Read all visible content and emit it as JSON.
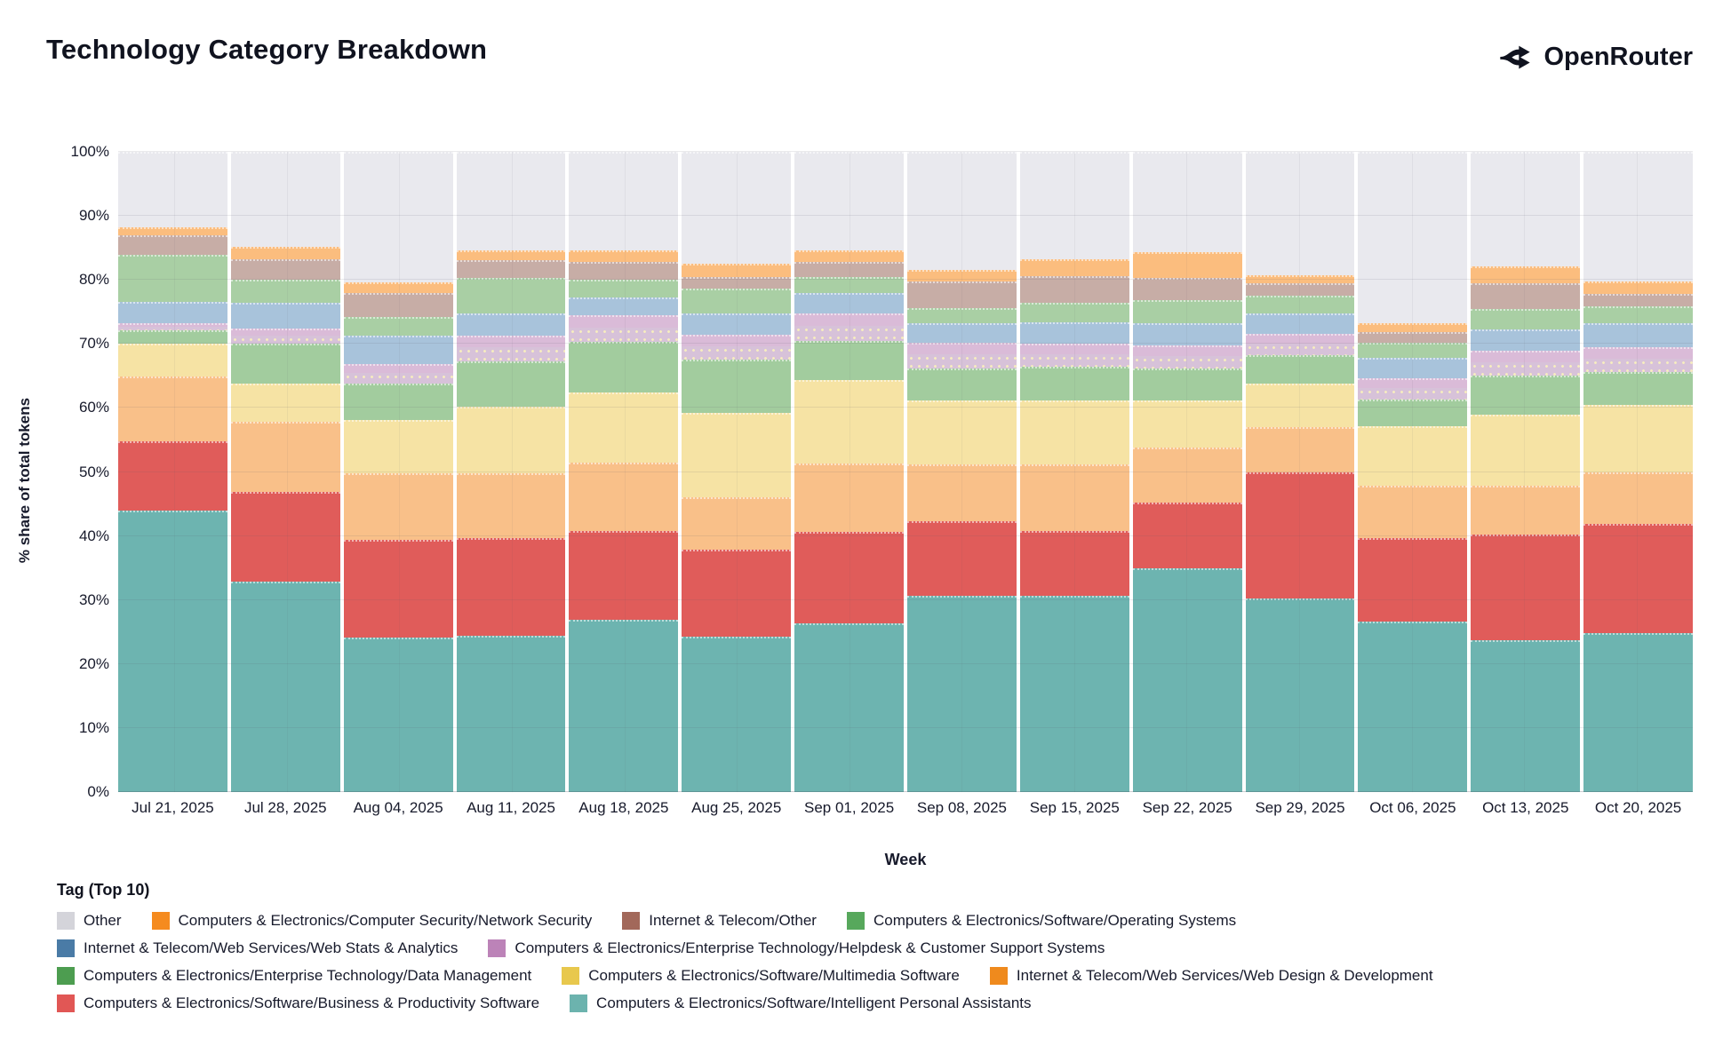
{
  "header": {
    "title": "Technology Category Breakdown",
    "brand": "OpenRouter"
  },
  "axes": {
    "y_title": "% share of total tokens",
    "x_title": "Week",
    "y_ticks": [
      "0%",
      "10%",
      "20%",
      "30%",
      "40%",
      "50%",
      "60%",
      "70%",
      "80%",
      "90%",
      "100%"
    ]
  },
  "legend": {
    "title": "Tag (Top 10)",
    "rows": [
      [
        "other",
        "ns",
        "ito",
        "os"
      ],
      [
        "wsa",
        "hcss"
      ],
      [
        "dm",
        "mms",
        "wdd"
      ],
      [
        "bps",
        "ipa"
      ]
    ]
  },
  "chart_data": {
    "type": "bar",
    "stacked": true,
    "title": "Technology Category Breakdown",
    "xlabel": "Week",
    "ylabel": "% share of total tokens",
    "ylim": [
      0,
      100
    ],
    "grid": true,
    "legend_position": "bottom",
    "categories": [
      "Jul 21, 2025",
      "Jul 28, 2025",
      "Aug 04, 2025",
      "Aug 11, 2025",
      "Aug 18, 2025",
      "Aug 25, 2025",
      "Sep 01, 2025",
      "Sep 08, 2025",
      "Sep 15, 2025",
      "Sep 22, 2025",
      "Sep 29, 2025",
      "Oct 06, 2025",
      "Oct 13, 2025",
      "Oct 20, 2025"
    ],
    "series": [
      {
        "key": "ipa",
        "name": "Computers & Electronics/Software/Intelligent Personal Assistants",
        "legend_color": "#6cb3ae",
        "bar_color": "#6db4b0",
        "pattern": false,
        "values": [
          44.0,
          32.9,
          24.1,
          24.4,
          26.9,
          24.3,
          26.4,
          30.6,
          30.6,
          34.9,
          30.2,
          26.6,
          23.7,
          24.8
        ]
      },
      {
        "key": "bps",
        "name": "Computers & Electronics/Software/Business & Productivity Software",
        "legend_color": "#e15755",
        "bar_color": "#e05c5a",
        "pattern": false,
        "values": [
          10.8,
          14.0,
          15.3,
          15.3,
          13.9,
          13.6,
          14.2,
          11.7,
          10.2,
          10.3,
          19.7,
          13.1,
          16.5,
          17.1
        ]
      },
      {
        "key": "wdd",
        "name": "Internet & Telecom/Web Services/Web Design & Development",
        "legend_color": "#ef8a1d",
        "bar_color": "#f9c089",
        "pattern": false,
        "values": [
          10.1,
          10.9,
          10.4,
          10.1,
          10.7,
          8.1,
          10.7,
          8.9,
          10.4,
          8.6,
          7.1,
          8.2,
          7.6,
          8.0
        ]
      },
      {
        "key": "mms",
        "name": "Computers & Electronics/Software/Multimedia Software",
        "legend_color": "#e8c84d",
        "bar_color": "#f6e3a4",
        "pattern": false,
        "values": [
          5.1,
          6.0,
          8.3,
          10.4,
          10.9,
          13.2,
          13.0,
          10.0,
          10.0,
          7.4,
          6.8,
          9.3,
          11.2,
          10.6
        ]
      },
      {
        "key": "dm",
        "name": "Computers & Electronics/Enterprise Technology/Data Management",
        "legend_color": "#4d9d50",
        "bar_color": "#a2cc9e",
        "pattern": false,
        "values": [
          2.1,
          6.2,
          5.7,
          7.1,
          7.9,
          8.3,
          6.2,
          5.0,
          5.2,
          5.0,
          4.4,
          4.1,
          6.1,
          5.1
        ]
      },
      {
        "key": "hcss",
        "name": "Computers & Electronics/Enterprise Technology/Helpdesk & Customer Support Systems",
        "legend_color": "#bc83b8",
        "bar_color": "#dabbd8",
        "pattern": false,
        "values": [
          1.2,
          2.4,
          3.1,
          4.0,
          4.2,
          3.9,
          4.2,
          4.0,
          3.6,
          3.6,
          3.4,
          3.3,
          3.8,
          3.9
        ]
      },
      {
        "key": "wsa",
        "name": "Internet & Telecom/Web Services/Web Stats & Analytics",
        "legend_color": "#4a7ba6",
        "bar_color": "#a8c3db",
        "pattern": false,
        "values": [
          3.2,
          4.1,
          4.4,
          3.4,
          2.7,
          3.3,
          3.2,
          3.0,
          3.4,
          3.5,
          3.1,
          3.3,
          3.4,
          3.7
        ]
      },
      {
        "key": "os",
        "name": "Computers & Electronics/Software/Operating Systems",
        "legend_color": "#57a85c",
        "bar_color": "#a9cfa4",
        "pattern": false,
        "values": [
          7.4,
          3.5,
          2.9,
          5.6,
          2.8,
          3.9,
          2.5,
          2.4,
          3.0,
          3.5,
          2.9,
          2.3,
          3.1,
          2.7
        ]
      },
      {
        "key": "ito",
        "name": "Internet & Telecom/Other",
        "legend_color": "#a2685a",
        "bar_color": "#c7ada6",
        "pattern": true,
        "values": [
          3.1,
          3.2,
          3.7,
          2.8,
          2.8,
          1.8,
          2.4,
          4.2,
          4.2,
          3.5,
          1.9,
          1.6,
          4.1,
          1.9
        ]
      },
      {
        "key": "ns",
        "name": "Computers & Electronics/Computer Security/Network Security",
        "legend_color": "#f58b1f",
        "bar_color": "#fbbd7e",
        "pattern": false,
        "values": [
          1.2,
          2.0,
          1.7,
          1.5,
          1.8,
          2.1,
          1.8,
          1.8,
          2.6,
          4.0,
          1.2,
          1.4,
          2.6,
          1.9
        ]
      },
      {
        "key": "other",
        "name": "Other",
        "legend_color": "#d4d4da",
        "bar_color": "#e9e9ee",
        "pattern": false,
        "values": [
          11.8,
          14.8,
          20.4,
          15.4,
          15.4,
          17.5,
          15.4,
          18.4,
          16.8,
          15.7,
          19.3,
          26.8,
          17.9,
          20.3
        ]
      }
    ]
  }
}
